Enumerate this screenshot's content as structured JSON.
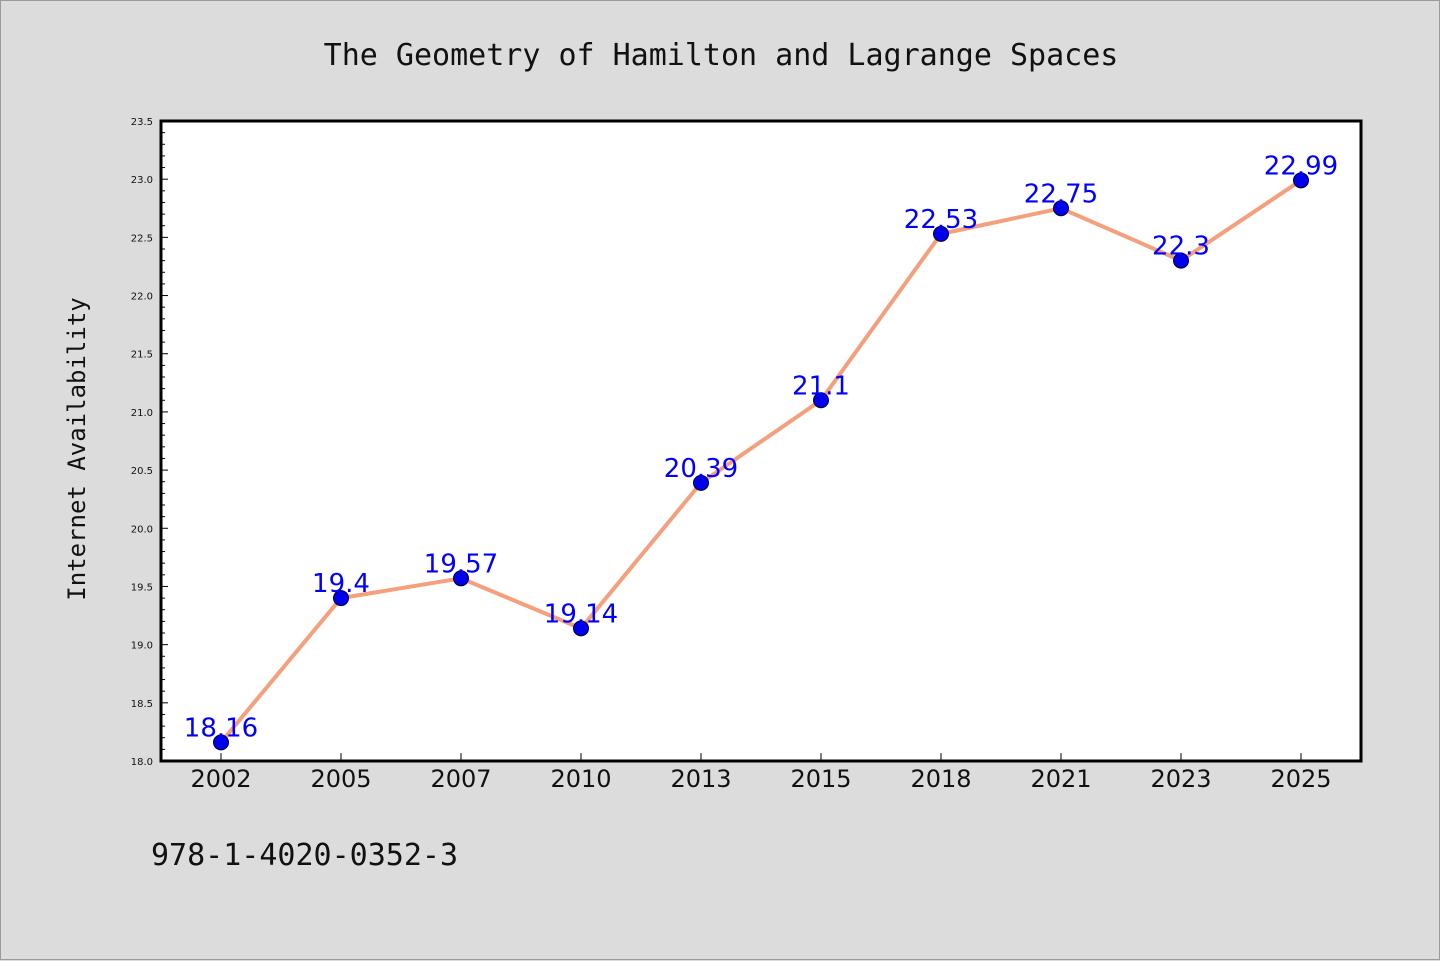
{
  "chart_data": {
    "type": "line",
    "title": "The Geometry of Hamilton and Lagrange Spaces",
    "xlabel": "",
    "ylabel": "Internet Availability",
    "categories": [
      "2002",
      "2005",
      "2007",
      "2010",
      "2013",
      "2015",
      "2018",
      "2021",
      "2023",
      "2025"
    ],
    "series": [
      {
        "values": [
          18.16,
          19.4,
          19.57,
          19.14,
          20.39,
          21.1,
          22.53,
          22.75,
          22.3,
          22.99
        ]
      }
    ],
    "data_labels": [
      "18.16",
      "19.4",
      "19.57",
      "19.14",
      "20.39",
      "21.1",
      "22.53",
      "22.75",
      "22.3",
      "22.99"
    ],
    "ylim": [
      18.0,
      23.5
    ],
    "yticks": [
      "18.0",
      "18.5",
      "19.0",
      "19.5",
      "20.0",
      "20.5",
      "21.0",
      "21.5",
      "22.0",
      "22.5",
      "23.0",
      "23.5"
    ],
    "grid": false,
    "legend": "none"
  },
  "annotation": {
    "isbn": "978-1-4020-0352-3"
  },
  "colors": {
    "background": "#dcdcdc",
    "plot_area": "#ffffff",
    "line": "#f4a07c",
    "marker": "#0000ee",
    "data_label": "#0000ff"
  }
}
